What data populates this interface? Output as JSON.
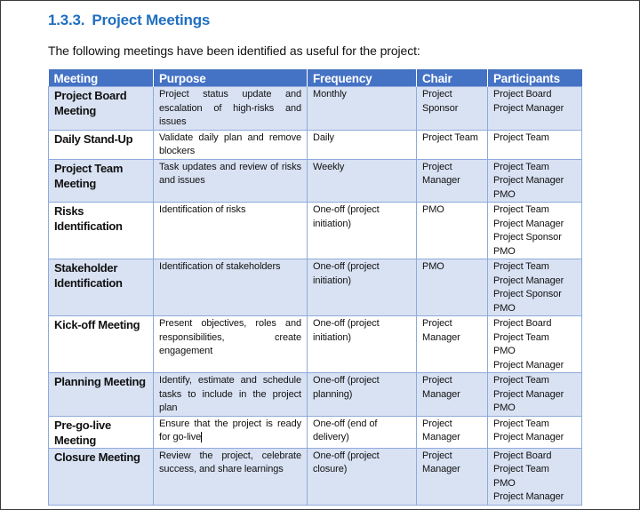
{
  "section": {
    "number": "1.3.3.",
    "title": "Project Meetings"
  },
  "intro": "The following meetings have been identified as useful for the project:",
  "table": {
    "headers": [
      "Meeting",
      "Purpose",
      "Frequency",
      "Chair",
      "Participants"
    ],
    "rows": [
      {
        "meeting": "Project Board Meeting",
        "purpose": "Project status update and escalation of high-risks and issues",
        "frequency": "Monthly",
        "chair": "Project Sponsor",
        "participants": [
          "Project Board",
          "Project Manager"
        ]
      },
      {
        "meeting": "Daily Stand-Up",
        "purpose": "Validate daily plan and remove blockers",
        "frequency": "Daily",
        "chair": "Project Team",
        "participants": [
          "Project Team"
        ]
      },
      {
        "meeting": "Project Team Meeting",
        "purpose": "Task updates and review of risks and issues",
        "frequency": "Weekly",
        "chair": "Project Manager",
        "participants": [
          "Project Team",
          "Project Manager",
          "PMO"
        ]
      },
      {
        "meeting": "Risks Identification",
        "purpose": "Identification of risks",
        "frequency": "One-off (project initiation)",
        "chair": "PMO",
        "participants": [
          "Project Team",
          "Project Manager",
          "Project Sponsor",
          "PMO"
        ]
      },
      {
        "meeting": "Stakeholder Identification",
        "purpose": "Identification of stakeholders",
        "frequency": "One-off (project initiation)",
        "chair": "PMO",
        "participants": [
          "Project Team",
          "Project Manager",
          "Project Sponsor",
          "PMO"
        ]
      },
      {
        "meeting": "Kick-off Meeting",
        "purpose": "Present objectives, roles and responsibilities, create engagement",
        "frequency": "One-off (project initiation)",
        "chair": "Project Manager",
        "participants": [
          "Project Board",
          "Project Team",
          "PMO",
          "Project Manager"
        ]
      },
      {
        "meeting": "Planning Meeting",
        "purpose": "Identify, estimate and schedule tasks to include in the project plan",
        "frequency": "One-off (project planning)",
        "chair": "Project Manager",
        "participants": [
          "Project Team",
          "Project Manager",
          "PMO"
        ]
      },
      {
        "meeting": "Pre-go-live Meeting",
        "purpose": "Ensure that the project is ready for go-live",
        "frequency": "One-off (end of delivery)",
        "chair": "Project Manager",
        "participants": [
          "Project Team",
          "Project Manager"
        ]
      },
      {
        "meeting": "Closure Meeting",
        "purpose": "Review the project, celebrate success, and share learnings",
        "frequency": "One-off (project closure)",
        "chair": "Project Manager",
        "participants": [
          "Project Board",
          "Project Team",
          "PMO",
          "Project Manager"
        ]
      }
    ]
  }
}
